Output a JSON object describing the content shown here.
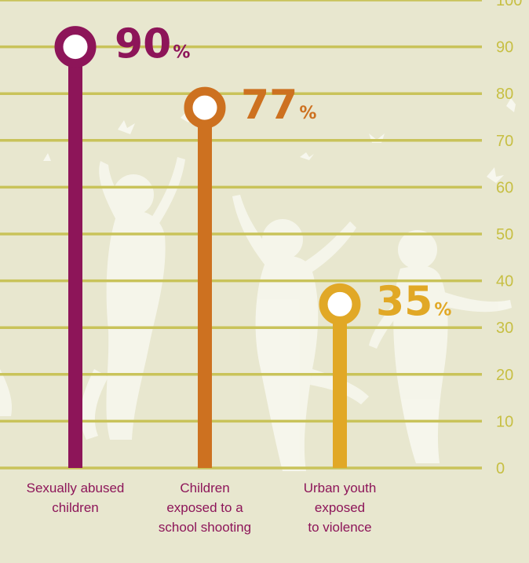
{
  "chart_data": {
    "type": "bar",
    "style": "lollipop",
    "categories": [
      [
        "Sexually abused",
        "children"
      ],
      [
        "Children",
        "exposed to a",
        "school shooting"
      ],
      [
        "Urban youth",
        "exposed",
        "to violence"
      ]
    ],
    "values": [
      90,
      77,
      35
    ],
    "value_suffix": "%",
    "ylim": [
      0,
      100
    ],
    "yticks": [
      0,
      10,
      20,
      30,
      40,
      50,
      60,
      70,
      80,
      90,
      100
    ],
    "grid": true,
    "colors": [
      "#8d1559",
      "#cd7120",
      "#e1a826"
    ],
    "background": "#e8e7cf",
    "gridline_color": "#c9c35a",
    "tick_color": "#c7bf43",
    "label_color": "#8d1559",
    "silhouette_color": "#f7f7ee",
    "title": "",
    "xlabel": "",
    "ylabel": ""
  }
}
